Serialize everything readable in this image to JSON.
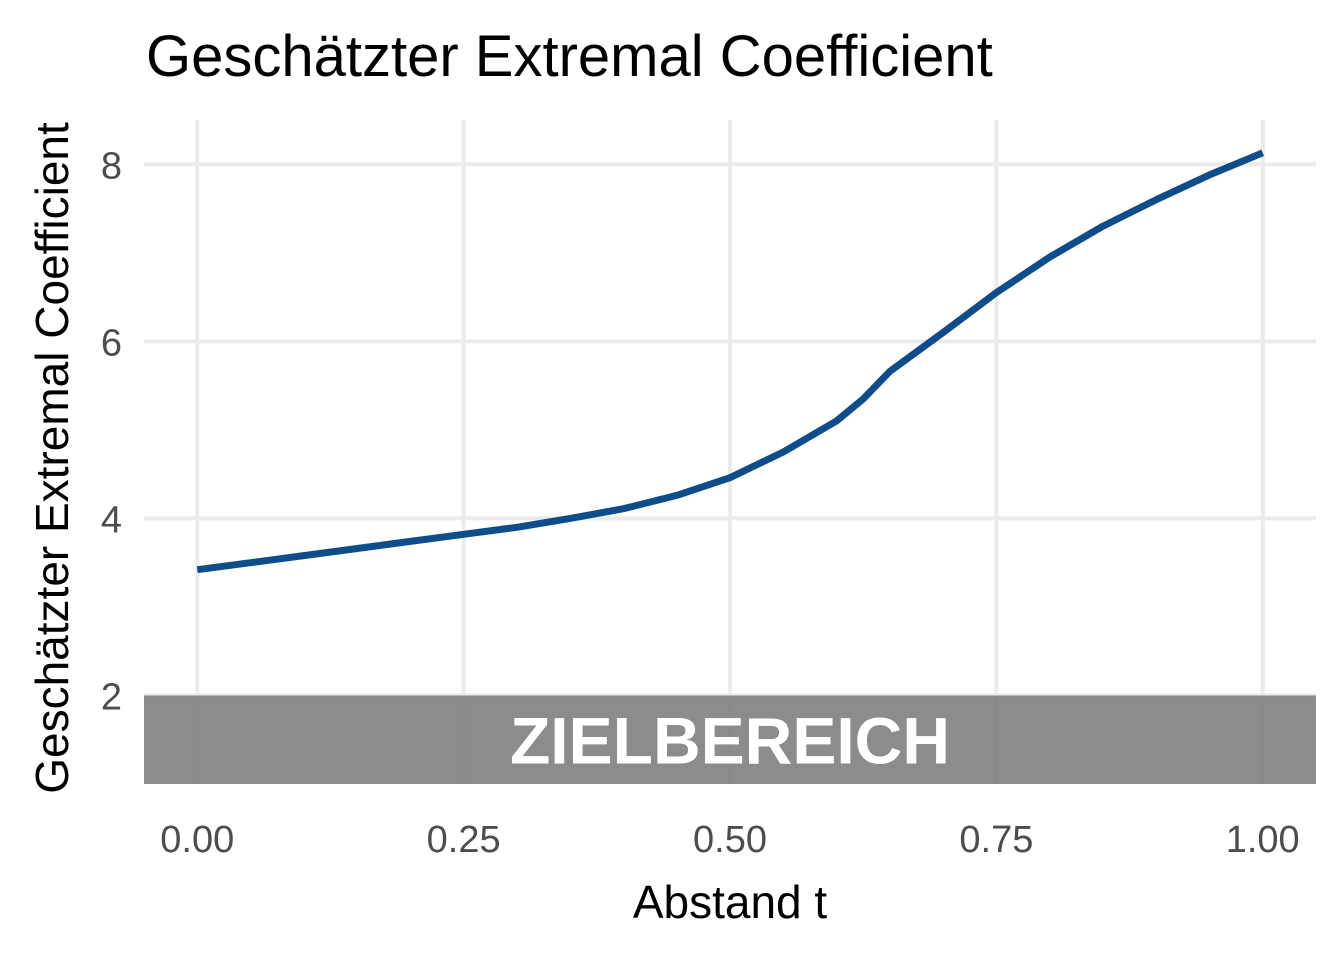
{
  "chart_data": {
    "type": "line",
    "title": "Geschätzter Extremal Coefficient",
    "xlabel": "Abstand t",
    "ylabel": "Geschätzter Extremal Coefficient",
    "xlim": [
      -0.05,
      1.05
    ],
    "ylim": [
      1.0,
      8.5
    ],
    "x_ticks": [
      0.0,
      0.25,
      0.5,
      0.75,
      1.0
    ],
    "x_tick_labels": [
      "0.00",
      "0.25",
      "0.50",
      "0.75",
      "1.00"
    ],
    "y_ticks": [
      2,
      4,
      6,
      8
    ],
    "y_tick_labels": [
      "2",
      "4",
      "6",
      "8"
    ],
    "grid": true,
    "series": [
      {
        "color": "#0f4c8a",
        "x": [
          0.0,
          0.05,
          0.1,
          0.15,
          0.2,
          0.25,
          0.3,
          0.35,
          0.4,
          0.45,
          0.5,
          0.55,
          0.6,
          0.625,
          0.65,
          0.7,
          0.75,
          0.8,
          0.85,
          0.9,
          0.95,
          1.0
        ],
        "y": [
          3.42,
          3.5,
          3.58,
          3.66,
          3.74,
          3.82,
          3.9,
          4.0,
          4.11,
          4.26,
          4.46,
          4.75,
          5.1,
          5.35,
          5.66,
          6.1,
          6.55,
          6.95,
          7.3,
          7.6,
          7.88,
          8.13
        ]
      }
    ],
    "annotation_band": {
      "label": "ZIELBEREICH",
      "y_from": 1.0,
      "y_to": 2.0,
      "color": "#7f7f7f"
    }
  }
}
